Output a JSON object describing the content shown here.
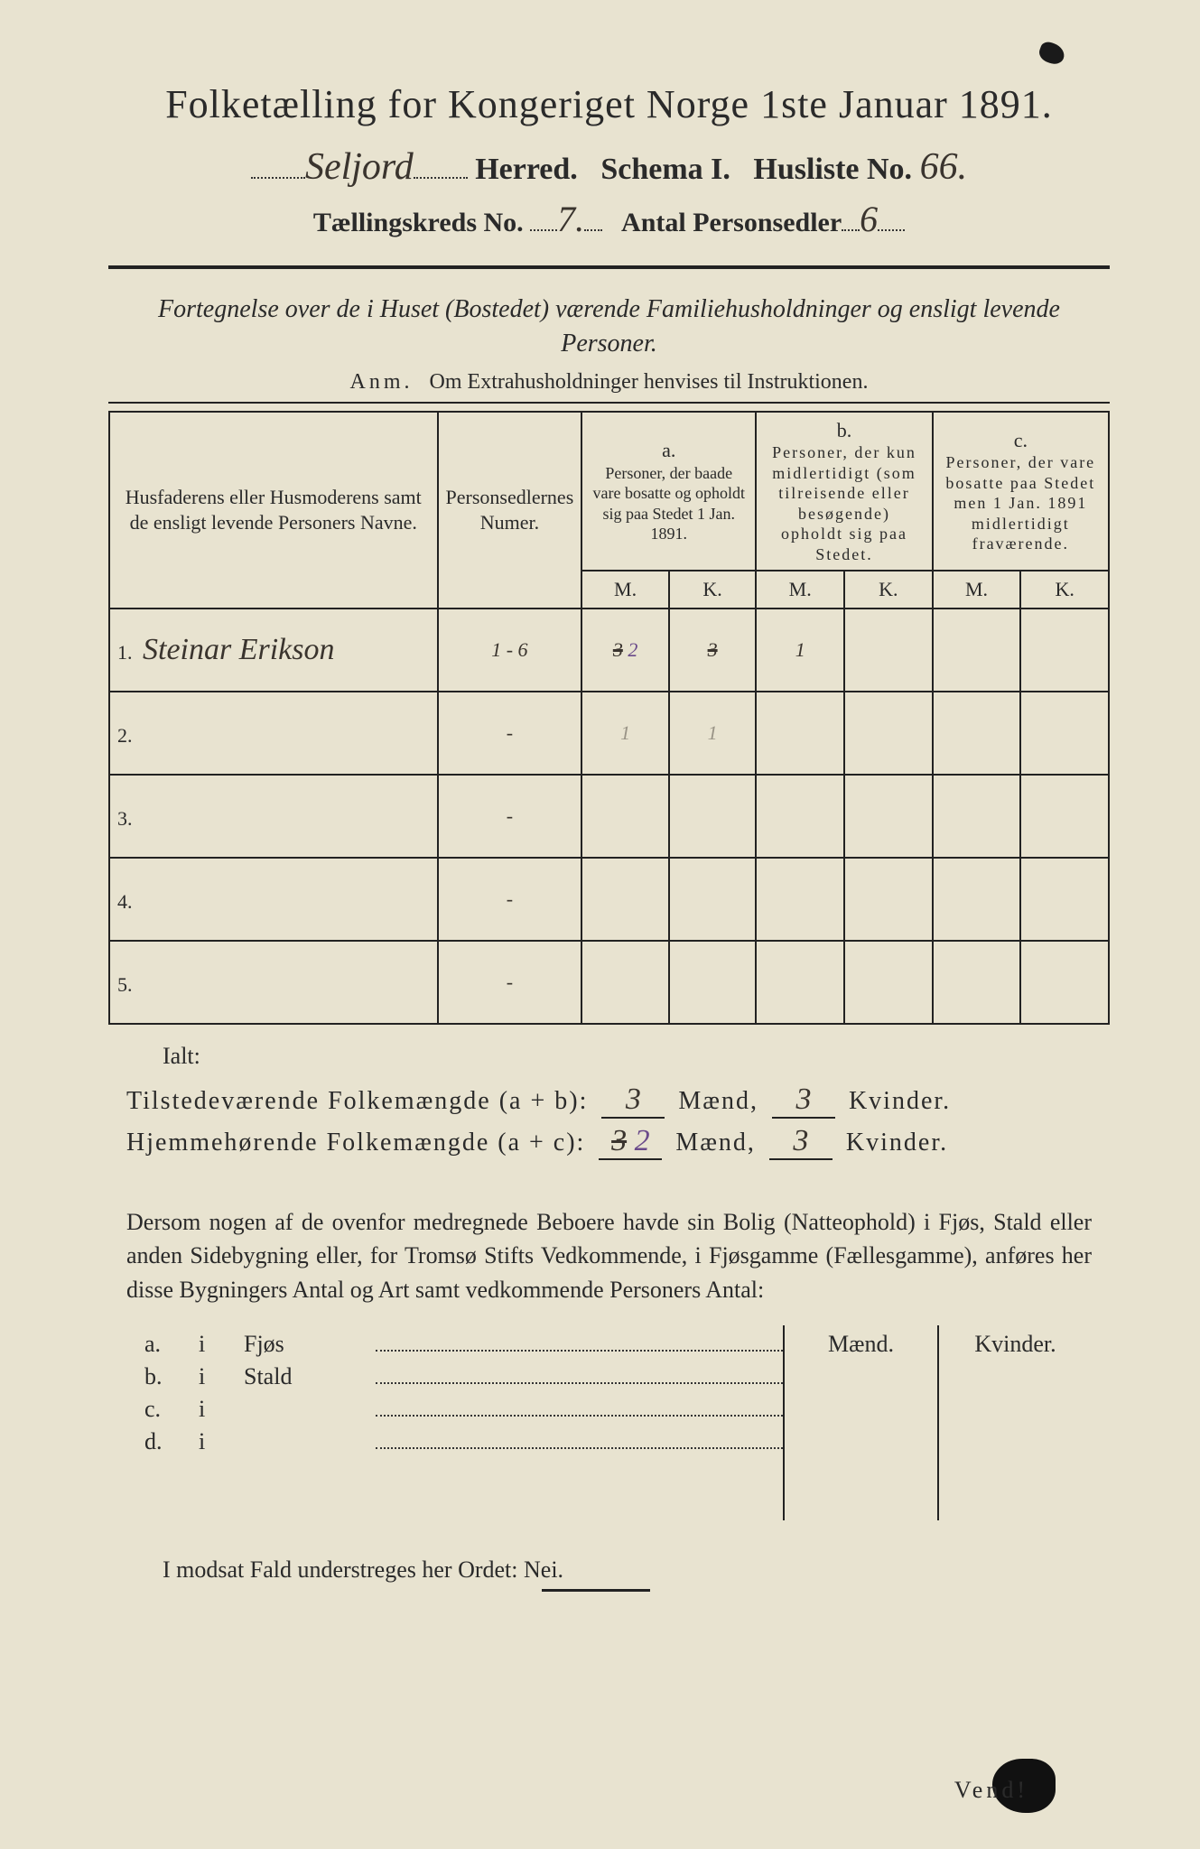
{
  "background_color": "#e8e3d0",
  "text_color": "#2a2a2a",
  "handwriting_color": "#3a342e",
  "purple_ink": "#6a4a8a",
  "header": {
    "title": "Folketælling for Kongeriget Norge 1ste Januar 1891.",
    "herred_hand": "Seljord",
    "herred_label": "Herred.",
    "schema_label": "Schema I.",
    "husliste_label": "Husliste No.",
    "husliste_no_hand": "66.",
    "kreds_label": "Tællingskreds No.",
    "kreds_no_hand": "7.",
    "antal_label": "Antal Personsedler",
    "antal_hand": "6"
  },
  "description": {
    "line": "Fortegnelse over de i Huset (Bostedet) værende Familiehusholdninger og ensligt levende Personer.",
    "anm_label": "Anm.",
    "anm_text": "Om Extrahusholdninger henvises til Instruktionen."
  },
  "table": {
    "col_name": "Husfaderens eller Husmoderens samt de ensligt levende Personers Navne.",
    "col_num": "Personsedlernes Numer.",
    "group_a_tag": "a.",
    "group_a": "Personer, der baade vare bosatte og opholdt sig paa Stedet 1 Jan. 1891.",
    "group_b_tag": "b.",
    "group_b": "Personer, der kun midlertidigt (som tilreisende eller besøgende) opholdt sig paa Stedet.",
    "group_c_tag": "c.",
    "group_c": "Personer, der vare bosatte paa Stedet men 1 Jan. 1891 midlertidigt fraværende.",
    "sub_m": "M.",
    "sub_k": "K.",
    "rows": [
      {
        "n": "1.",
        "name": "Steinar Erikson",
        "num": "1 - 6",
        "aM": "3",
        "aM_strike": true,
        "aM_over": "2",
        "aK": "3",
        "aK_strike": true,
        "bM": "1",
        "bK": "",
        "cM": "",
        "cK": ""
      },
      {
        "n": "2.",
        "name": "",
        "num": "-",
        "aM": "1",
        "aK": "1",
        "bM": "",
        "bK": "",
        "cM": "",
        "cK": "",
        "faint": true
      },
      {
        "n": "3.",
        "name": "",
        "num": "-",
        "aM": "",
        "aK": "",
        "bM": "",
        "bK": "",
        "cM": "",
        "cK": ""
      },
      {
        "n": "4.",
        "name": "",
        "num": "-",
        "aM": "",
        "aK": "",
        "bM": "",
        "bK": "",
        "cM": "",
        "cK": ""
      },
      {
        "n": "5.",
        "name": "",
        "num": "-",
        "aM": "",
        "aK": "",
        "bM": "",
        "bK": "",
        "cM": "",
        "cK": ""
      }
    ]
  },
  "totals": {
    "ialt": "Ialt:",
    "line1_label": "Tilstedeværende Folkemængde (a + b):",
    "line2_label": "Hjemmehørende Folkemængde (a + c):",
    "maend": "Mænd,",
    "kvinder": "Kvinder.",
    "l1_m": "3",
    "l1_k": "3",
    "l2_m_strike": "3",
    "l2_m_over": "2",
    "l2_k": "3"
  },
  "paragraph": "Dersom nogen af de ovenfor medregnede Beboere havde sin Bolig (Natteophold) i Fjøs, Stald eller anden Sidebygning eller, for Tromsø Stifts Vedkommende, i Fjøsgamme (Fællesgamme), anføres her disse Bygningers Antal og Art samt vedkommende Personers Antal:",
  "side": {
    "col_m": "Mænd.",
    "col_k": "Kvinder.",
    "rows": [
      {
        "a": "a.",
        "i": "i",
        "w": "Fjøs"
      },
      {
        "a": "b.",
        "i": "i",
        "w": "Stald"
      },
      {
        "a": "c.",
        "i": "i",
        "w": ""
      },
      {
        "a": "d.",
        "i": "i",
        "w": ""
      }
    ]
  },
  "footer": {
    "line": "I modsat Fald understreges her Ordet: Nei.",
    "vend": "Vend!"
  }
}
